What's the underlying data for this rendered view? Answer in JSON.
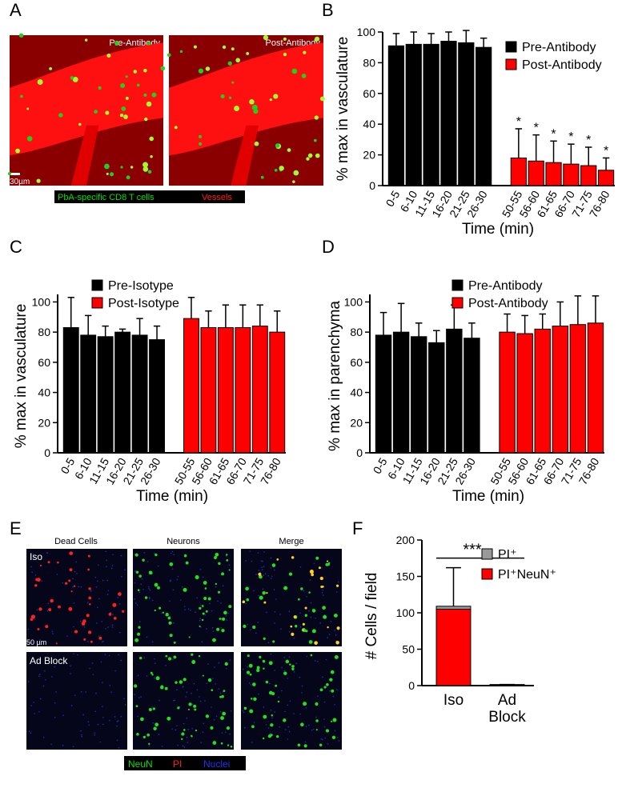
{
  "panel_labels": [
    "A",
    "B",
    "C",
    "D",
    "E",
    "F"
  ],
  "panel_a": {
    "image_labels": [
      "Pre-Antibody",
      "Post-Antibody"
    ],
    "scale_bar": "30µm",
    "legend": [
      "PbA-specific CD8 T cells",
      "Vessels"
    ]
  },
  "panel_e": {
    "column_titles": [
      "Dead Cells",
      "Neurons",
      "Merge"
    ],
    "row_labels": [
      "Iso",
      "Ad Block"
    ],
    "scale_bar": "50 µm",
    "legend": [
      "NeuN",
      "PI",
      "Nuclei"
    ]
  },
  "chart_data": [
    {
      "type": "bar",
      "ylabel": "% max in vasculature",
      "xlabel": "Time (min)",
      "categories": [
        "0-5",
        "6-10",
        "11-15",
        "16-20",
        "21-25",
        "26-30",
        null,
        "50-55",
        "56-60",
        "61-65",
        "66-70",
        "71-75",
        "76-80"
      ],
      "series": [
        {
          "name": "Pre-Antibody",
          "color": "#000000",
          "values": [
            91,
            92,
            92,
            94,
            93,
            90,
            null,
            null,
            null,
            null,
            null,
            null,
            null
          ],
          "errors": [
            8,
            8,
            7,
            6,
            8,
            6,
            null,
            null,
            null,
            null,
            null,
            null,
            null
          ]
        },
        {
          "name": "Post-Antibody",
          "color": "#ff0000",
          "values": [
            null,
            null,
            null,
            null,
            null,
            null,
            null,
            18,
            16,
            15,
            14,
            13,
            10
          ],
          "errors": [
            null,
            null,
            null,
            null,
            null,
            null,
            null,
            19,
            17,
            14,
            13,
            12,
            8
          ],
          "markers": [
            null,
            null,
            null,
            null,
            null,
            null,
            null,
            "*",
            "*",
            "*",
            "*",
            "*",
            "*"
          ]
        }
      ],
      "ylim": [
        0,
        100
      ],
      "yticks": [
        0,
        20,
        40,
        60,
        80,
        100
      ]
    },
    {
      "type": "bar",
      "ylabel": "% max in vasculature",
      "xlabel": "Time (min)",
      "categories": [
        "0-5",
        "6-10",
        "11-15",
        "16-20",
        "21-25",
        "26-30",
        null,
        "50-55",
        "56-60",
        "61-65",
        "66-70",
        "71-75",
        "76-80"
      ],
      "series": [
        {
          "name": "Pre-Isotype",
          "color": "#000000",
          "values": [
            83,
            78,
            77,
            80,
            78,
            75,
            null,
            null,
            null,
            null,
            null,
            null,
            null
          ],
          "errors": [
            20,
            13,
            7,
            2,
            11,
            9,
            null,
            null,
            null,
            null,
            null,
            null,
            null
          ]
        },
        {
          "name": "Post-Isotype",
          "color": "#ff0000",
          "values": [
            null,
            null,
            null,
            null,
            null,
            null,
            null,
            89,
            83,
            83,
            83,
            84,
            80
          ],
          "errors": [
            null,
            null,
            null,
            null,
            null,
            null,
            null,
            14,
            11,
            15,
            15,
            14,
            14
          ]
        }
      ],
      "ylim": [
        0,
        105
      ],
      "yticks": [
        0,
        20,
        40,
        60,
        80,
        100
      ]
    },
    {
      "type": "bar",
      "ylabel": "% max in parenchyma",
      "xlabel": "Time (min)",
      "categories": [
        "0-5",
        "6-10",
        "11-15",
        "16-20",
        "21-25",
        "26-30",
        null,
        "50-55",
        "56-60",
        "61-65",
        "66-70",
        "71-75",
        "76-80"
      ],
      "series": [
        {
          "name": "Pre-Antibody",
          "color": "#000000",
          "values": [
            78,
            80,
            77,
            73,
            82,
            76,
            null,
            null,
            null,
            null,
            null,
            null,
            null
          ],
          "errors": [
            15,
            19,
            9,
            8,
            16,
            10,
            null,
            null,
            null,
            null,
            null,
            null,
            null
          ]
        },
        {
          "name": "Post-Antibody",
          "color": "#ff0000",
          "values": [
            null,
            null,
            null,
            null,
            null,
            null,
            null,
            80,
            79,
            82,
            84,
            85,
            86
          ],
          "errors": [
            null,
            null,
            null,
            null,
            null,
            null,
            null,
            12,
            12,
            10,
            16,
            19,
            18
          ]
        }
      ],
      "ylim": [
        0,
        105
      ],
      "yticks": [
        0,
        20,
        40,
        60,
        80,
        100
      ]
    },
    {
      "type": "bar",
      "stacked": true,
      "ylabel": "# Cells / field",
      "significance": "***",
      "categories": [
        "Iso",
        "Ad Block"
      ],
      "series": [
        {
          "name": "PI⁺NeuN⁺",
          "color": "#ff0000",
          "values": [
            105,
            1
          ]
        },
        {
          "name": "PI⁺",
          "color": "#999999",
          "values": [
            4,
            0.5
          ],
          "errors": [
            53,
            0
          ]
        }
      ],
      "ylim": [
        0,
        200
      ],
      "yticks": [
        0,
        50,
        100,
        150,
        200
      ]
    }
  ]
}
